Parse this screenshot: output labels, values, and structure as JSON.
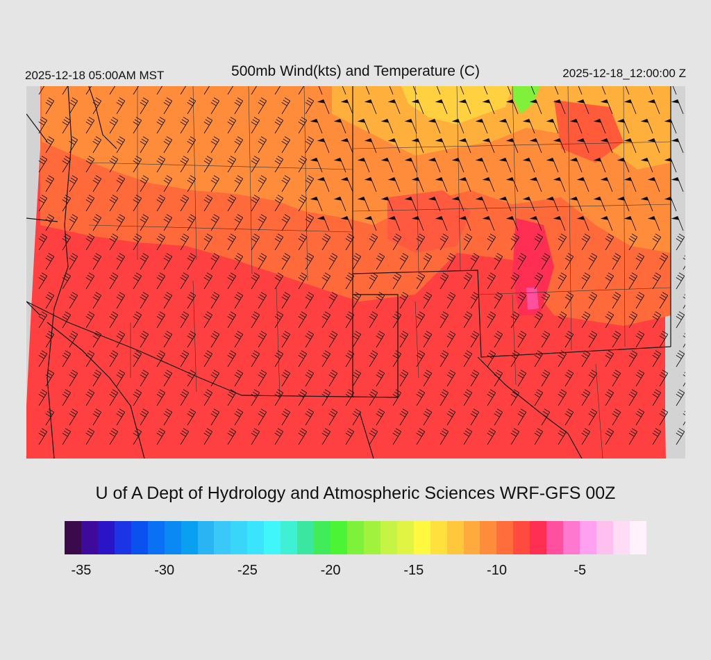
{
  "header": {
    "local_time": "2025-12-18 05:00AM MST",
    "title": "500mb Wind(kts) and Temperature (C)",
    "valid_time": "2025-12-18_12:00:00 Z"
  },
  "credit": "U of A Dept of Hydrology and Atmospheric Sciences WRF-GFS 00Z",
  "colorbar": {
    "colors": [
      "#3a0a4a",
      "#3d0a9a",
      "#2a14c8",
      "#1a34e6",
      "#0a52f0",
      "#0a70f4",
      "#0a88f4",
      "#0aa0f2",
      "#2ab4f4",
      "#3ac8f8",
      "#3ad6fa",
      "#3ae4fc",
      "#40f6fa",
      "#40f0d4",
      "#3ae6a0",
      "#40ec5a",
      "#4cf436",
      "#7ef23a",
      "#a0f23c",
      "#c6f444",
      "#e0f444",
      "#fff840",
      "#ffe03c",
      "#ffc83c",
      "#ffaa3c",
      "#ff8c3a",
      "#ff6e3a",
      "#ff4a40",
      "#ff2e52",
      "#ff50a0",
      "#ff78d0",
      "#ffa0f0",
      "#ffc0f0",
      "#ffdcf6",
      "#fff2fc"
    ],
    "tick_labels": [
      {
        "label": "-35",
        "value": -35
      },
      {
        "label": "-30",
        "value": -30
      },
      {
        "label": "-25",
        "value": -25
      },
      {
        "label": "-20",
        "value": -20
      },
      {
        "label": "-15",
        "value": -15
      },
      {
        "label": "-10",
        "value": -10
      },
      {
        "label": "-5",
        "value": -5
      }
    ],
    "range": [
      -36,
      -1
    ]
  },
  "map": {
    "variable": "500mb temperature (C) with wind barbs (kts)",
    "background_color": "#d3d3d3",
    "dominant_colors": [
      "#ff4040",
      "#ff6a3a",
      "#ff8c3a",
      "#ffb03c",
      "#ffd040",
      "#80f03a",
      "#ff2e52",
      "#ff50a0"
    ]
  }
}
